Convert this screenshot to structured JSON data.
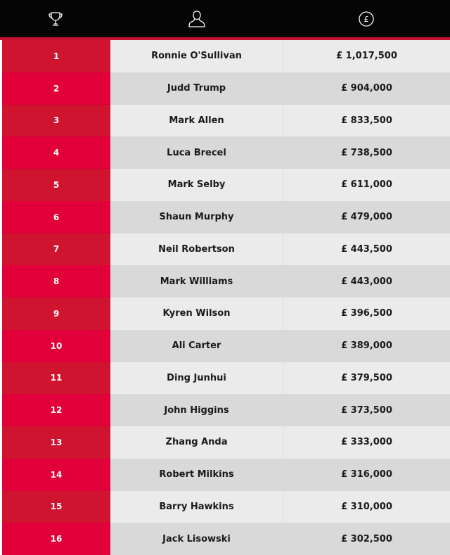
{
  "colors": {
    "header": "#050505",
    "accent": "#c8102e",
    "rank_odd": "#cf1430",
    "rank_even": "#e2003a"
  },
  "header": {
    "icons": [
      "trophy-icon",
      "person-icon",
      "pound-coin-icon"
    ]
  },
  "rows": [
    {
      "rank": "1",
      "name": "Ronnie O'Sullivan",
      "prize": "£ 1,017,500"
    },
    {
      "rank": "2",
      "name": "Judd Trump",
      "prize": "£ 904,000"
    },
    {
      "rank": "3",
      "name": "Mark Allen",
      "prize": "£ 833,500"
    },
    {
      "rank": "4",
      "name": "Luca Brecel",
      "prize": "£ 738,500"
    },
    {
      "rank": "5",
      "name": "Mark Selby",
      "prize": "£ 611,000"
    },
    {
      "rank": "6",
      "name": "Shaun Murphy",
      "prize": "£ 479,000"
    },
    {
      "rank": "7",
      "name": "Neil Robertson",
      "prize": "£ 443,500"
    },
    {
      "rank": "8",
      "name": "Mark Williams",
      "prize": "£ 443,000"
    },
    {
      "rank": "9",
      "name": "Kyren Wilson",
      "prize": "£ 396,500"
    },
    {
      "rank": "10",
      "name": "Ali Carter",
      "prize": "£ 389,000"
    },
    {
      "rank": "11",
      "name": "Ding Junhui",
      "prize": "£ 379,500"
    },
    {
      "rank": "12",
      "name": "John Higgins",
      "prize": "£ 373,500"
    },
    {
      "rank": "13",
      "name": "Zhang Anda",
      "prize": "£ 333,000"
    },
    {
      "rank": "14",
      "name": "Robert Milkins",
      "prize": "£ 316,000"
    },
    {
      "rank": "15",
      "name": "Barry Hawkins",
      "prize": "£ 310,000"
    },
    {
      "rank": "16",
      "name": "Jack Lisowski",
      "prize": "£ 302,500"
    }
  ]
}
